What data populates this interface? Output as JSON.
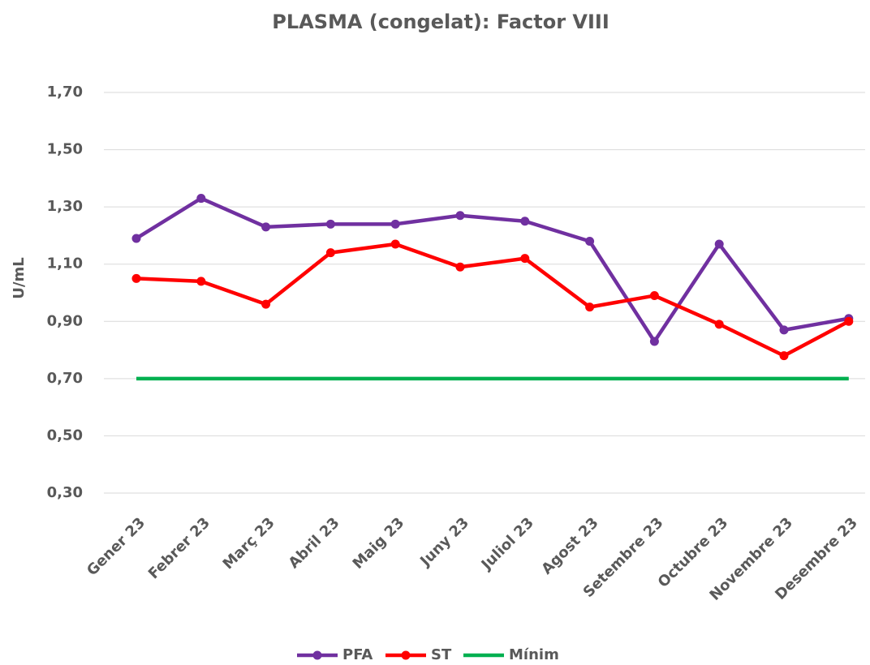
{
  "chart_data": {
    "type": "line",
    "title": "PLASMA (congelat): Factor VIII",
    "y_label": "U/mL",
    "categories": [
      "Gener 23",
      "Febrer 23",
      "Març 23",
      "Abril 23",
      "Maig 23",
      "Juny 23",
      "Juliol 23",
      "Agost 23",
      "Setembre 23",
      "Octubre 23",
      "Novembre 23",
      "Desembre 23"
    ],
    "series": [
      {
        "name": "PFA",
        "color": "#7030a0",
        "marker": true,
        "values": [
          1.19,
          1.33,
          1.23,
          1.24,
          1.24,
          1.27,
          1.25,
          1.18,
          0.83,
          1.17,
          0.87,
          0.91
        ]
      },
      {
        "name": "ST",
        "color": "#ff0000",
        "marker": true,
        "values": [
          1.05,
          1.04,
          0.96,
          1.14,
          1.17,
          1.09,
          1.12,
          0.95,
          0.99,
          0.89,
          0.78,
          0.9
        ]
      },
      {
        "name": "Mínim",
        "color": "#00b050",
        "marker": false,
        "values": [
          0.7,
          0.7,
          0.7,
          0.7,
          0.7,
          0.7,
          0.7,
          0.7,
          0.7,
          0.7,
          0.7,
          0.7
        ]
      }
    ],
    "ylim": [
      0.3,
      1.7
    ],
    "yticks": [
      {
        "value": 0.3,
        "label": "0,30"
      },
      {
        "value": 0.5,
        "label": "0,50"
      },
      {
        "value": 0.7,
        "label": "0,70"
      },
      {
        "value": 0.9,
        "label": "0,90"
      },
      {
        "value": 1.1,
        "label": "1,10"
      },
      {
        "value": 1.3,
        "label": "1,30"
      },
      {
        "value": 1.5,
        "label": "1,50"
      },
      {
        "value": 1.7,
        "label": "1,70"
      }
    ],
    "grid": true,
    "legend": "bottom"
  }
}
